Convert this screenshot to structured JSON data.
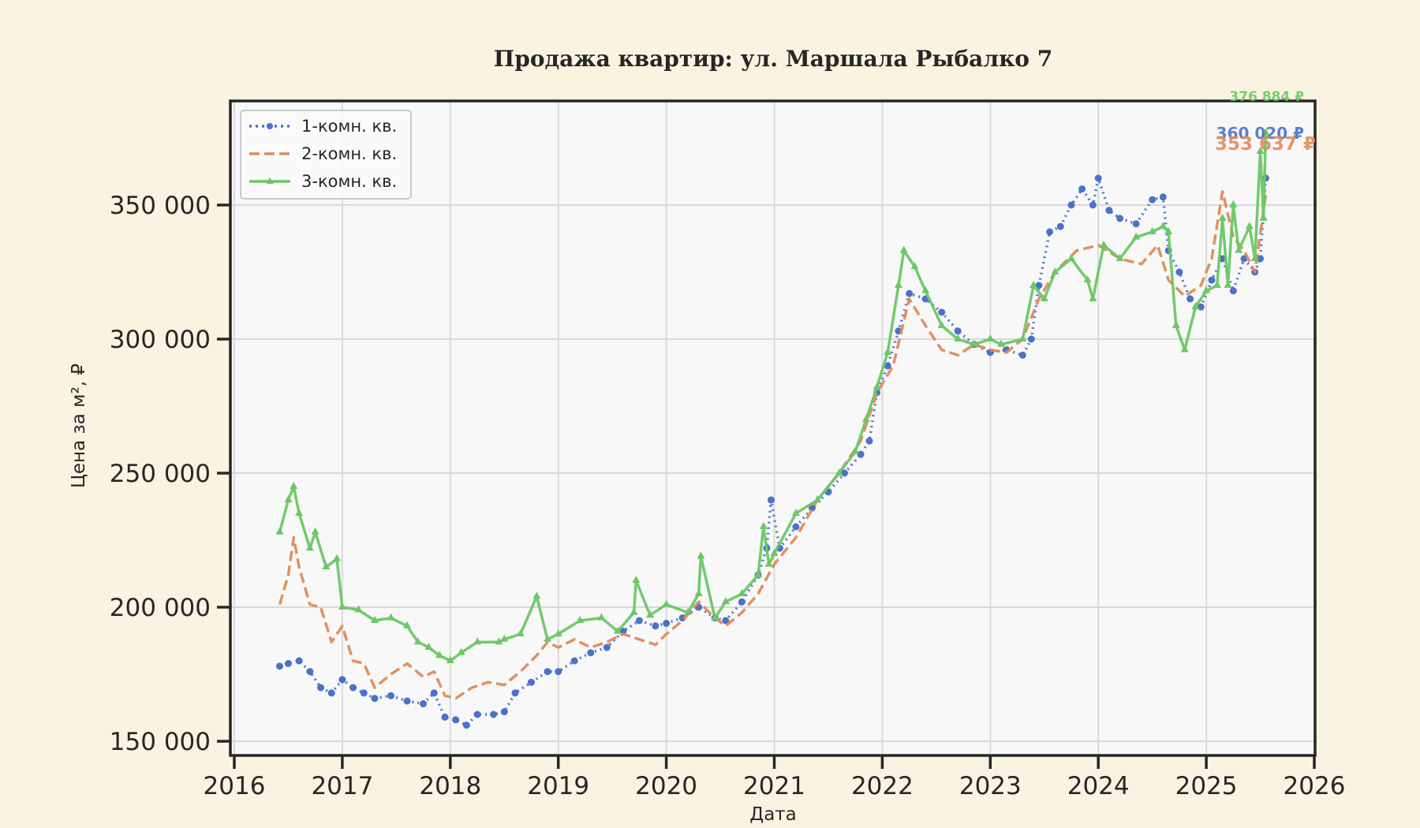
{
  "chart_data": {
    "type": "line",
    "title": "Продажа квартир: ул. Маршала Рыбалко 7",
    "xlabel": "Дата",
    "ylabel": "Цена за м², ₽",
    "xlim": [
      2016,
      2026
    ],
    "ylim": [
      144700,
      388800
    ],
    "x_ticks": [
      "2016",
      "2017",
      "2018",
      "2019",
      "2020",
      "2021",
      "2022",
      "2023",
      "2024",
      "2025",
      "2026"
    ],
    "y_ticks": [
      "150 000",
      "200 000",
      "250 000",
      "300 000",
      "350 000"
    ],
    "y_tick_values": [
      150000,
      200000,
      250000,
      300000,
      350000
    ],
    "grid": true,
    "legend_position": "upper left",
    "series": [
      {
        "name": "1-комн. кв.",
        "color": "#4a72c9",
        "style": "dotted",
        "marker": "circle",
        "x": [
          2016.42,
          2016.5,
          2016.6,
          2016.7,
          2016.8,
          2016.9,
          2017.0,
          2017.1,
          2017.2,
          2017.3,
          2017.45,
          2017.6,
          2017.75,
          2017.85,
          2017.95,
          2018.05,
          2018.15,
          2018.25,
          2018.4,
          2018.5,
          2018.6,
          2018.75,
          2018.9,
          2019.0,
          2019.15,
          2019.3,
          2019.45,
          2019.6,
          2019.75,
          2019.9,
          2020.0,
          2020.15,
          2020.3,
          2020.45,
          2020.55,
          2020.7,
          2020.85,
          2020.93,
          2020.97,
          2021.05,
          2021.2,
          2021.35,
          2021.5,
          2021.65,
          2021.8,
          2021.88,
          2021.95,
          2022.05,
          2022.15,
          2022.25,
          2022.4,
          2022.55,
          2022.7,
          2022.85,
          2023.0,
          2023.15,
          2023.3,
          2023.38,
          2023.45,
          2023.55,
          2023.65,
          2023.75,
          2023.85,
          2023.95,
          2024.0,
          2024.1,
          2024.2,
          2024.35,
          2024.5,
          2024.6,
          2024.65,
          2024.75,
          2024.85,
          2024.95,
          2025.05,
          2025.15,
          2025.25,
          2025.35,
          2025.45,
          2025.5,
          2025.55
        ],
        "values": [
          178000,
          179000,
          180000,
          176000,
          170000,
          168000,
          173000,
          170000,
          168000,
          166000,
          167000,
          165000,
          164000,
          168000,
          159000,
          158000,
          156000,
          160000,
          160000,
          161000,
          168000,
          172000,
          176000,
          176000,
          180000,
          183000,
          185000,
          191000,
          195000,
          193000,
          194000,
          196000,
          200000,
          196000,
          195000,
          202000,
          212000,
          222000,
          240000,
          222000,
          230000,
          237000,
          243000,
          250000,
          257000,
          262000,
          280000,
          290000,
          303000,
          317000,
          315000,
          310000,
          303000,
          298000,
          295000,
          296000,
          294000,
          300000,
          320000,
          340000,
          342000,
          350000,
          356000,
          350000,
          360000,
          348000,
          345000,
          343000,
          352000,
          353000,
          333000,
          325000,
          315000,
          312000,
          322000,
          330000,
          318000,
          330000,
          325000,
          330000,
          360020
        ]
      },
      {
        "name": "2-комн. кв.",
        "color": "#e08a5a",
        "style": "dashed",
        "marker": "none",
        "x": [
          2016.42,
          2016.5,
          2016.55,
          2016.6,
          2016.7,
          2016.8,
          2016.9,
          2017.0,
          2017.1,
          2017.2,
          2017.3,
          2017.45,
          2017.6,
          2017.75,
          2017.85,
          2017.95,
          2018.05,
          2018.2,
          2018.35,
          2018.5,
          2018.65,
          2018.8,
          2018.9,
          2019.0,
          2019.15,
          2019.3,
          2019.45,
          2019.6,
          2019.75,
          2019.9,
          2020.0,
          2020.15,
          2020.3,
          2020.45,
          2020.55,
          2020.7,
          2020.85,
          2021.0,
          2021.2,
          2021.4,
          2021.6,
          2021.8,
          2021.95,
          2022.1,
          2022.25,
          2022.4,
          2022.55,
          2022.7,
          2022.85,
          2023.0,
          2023.15,
          2023.3,
          2023.45,
          2023.6,
          2023.8,
          2024.0,
          2024.2,
          2024.4,
          2024.55,
          2024.65,
          2024.8,
          2024.95,
          2025.05,
          2025.15,
          2025.25,
          2025.35,
          2025.45,
          2025.55
        ],
        "values": [
          201000,
          212000,
          226000,
          215000,
          201000,
          200000,
          187000,
          193000,
          180000,
          179000,
          170000,
          175000,
          179000,
          174000,
          176000,
          167000,
          166000,
          170000,
          172000,
          171000,
          176000,
          182000,
          187000,
          185000,
          188000,
          185000,
          187000,
          190000,
          188000,
          186000,
          190000,
          195000,
          202000,
          196000,
          193000,
          198000,
          205000,
          216000,
          226000,
          240000,
          250000,
          262000,
          280000,
          290000,
          315000,
          305000,
          296000,
          294000,
          298000,
          296000,
          295000,
          300000,
          315000,
          325000,
          333000,
          335000,
          330000,
          328000,
          335000,
          322000,
          316000,
          320000,
          330000,
          355000,
          338000,
          333000,
          325000,
          353637
        ]
      },
      {
        "name": "3-комн. кв.",
        "color": "#6cc765",
        "style": "solid",
        "marker": "triangle",
        "x": [
          2016.42,
          2016.5,
          2016.55,
          2016.6,
          2016.7,
          2016.75,
          2016.85,
          2016.95,
          2017.0,
          2017.15,
          2017.3,
          2017.45,
          2017.6,
          2017.7,
          2017.8,
          2017.9,
          2018.0,
          2018.1,
          2018.25,
          2018.45,
          2018.5,
          2018.65,
          2018.8,
          2018.9,
          2019.0,
          2019.2,
          2019.4,
          2019.55,
          2019.7,
          2019.72,
          2019.85,
          2020.0,
          2020.2,
          2020.3,
          2020.32,
          2020.45,
          2020.55,
          2020.7,
          2020.85,
          2020.9,
          2020.95,
          2021.0,
          2021.2,
          2021.4,
          2021.6,
          2021.75,
          2021.85,
          2021.95,
          2022.05,
          2022.15,
          2022.2,
          2022.3,
          2022.4,
          2022.55,
          2022.7,
          2022.85,
          2023.0,
          2023.1,
          2023.3,
          2023.4,
          2023.5,
          2023.6,
          2023.75,
          2023.9,
          2023.95,
          2024.05,
          2024.2,
          2024.35,
          2024.5,
          2024.6,
          2024.65,
          2024.72,
          2024.8,
          2024.9,
          2025.0,
          2025.1,
          2025.15,
          2025.2,
          2025.25,
          2025.3,
          2025.4,
          2025.45,
          2025.5,
          2025.53,
          2025.55
        ],
        "values": [
          228000,
          240000,
          245000,
          235000,
          222000,
          228000,
          215000,
          218000,
          200000,
          199000,
          195000,
          196000,
          193000,
          187000,
          185000,
          182000,
          180000,
          183000,
          187000,
          187000,
          188000,
          190000,
          204000,
          188000,
          190000,
          195000,
          196000,
          191000,
          198000,
          210000,
          197000,
          201000,
          198000,
          205000,
          219000,
          196000,
          202000,
          205000,
          212000,
          230000,
          216000,
          220000,
          235000,
          240000,
          250000,
          258000,
          270000,
          282000,
          295000,
          320000,
          333000,
          327000,
          318000,
          305000,
          300000,
          298000,
          300000,
          298000,
          300000,
          320000,
          315000,
          325000,
          330000,
          322000,
          315000,
          335000,
          330000,
          338000,
          340000,
          342000,
          340000,
          305000,
          296000,
          312000,
          318000,
          320000,
          345000,
          320000,
          350000,
          333000,
          342000,
          330000,
          370000,
          345000,
          376884
        ]
      }
    ],
    "annotations": [
      {
        "text": "376 884 ₽",
        "color": "#6cc765"
      },
      {
        "text": "360 020 ₽",
        "color": "#4a72c9"
      },
      {
        "text": "353 637 ₽",
        "color": "#e08a5a"
      }
    ]
  },
  "labels": {
    "title": "Продажа квартир: ул. Маршала Рыбалко 7",
    "xlabel": "Дата",
    "ylabel": "Цена за м², ₽",
    "legend": [
      "1-комн. кв.",
      "2-комн. кв.",
      "3-комн. кв."
    ]
  }
}
